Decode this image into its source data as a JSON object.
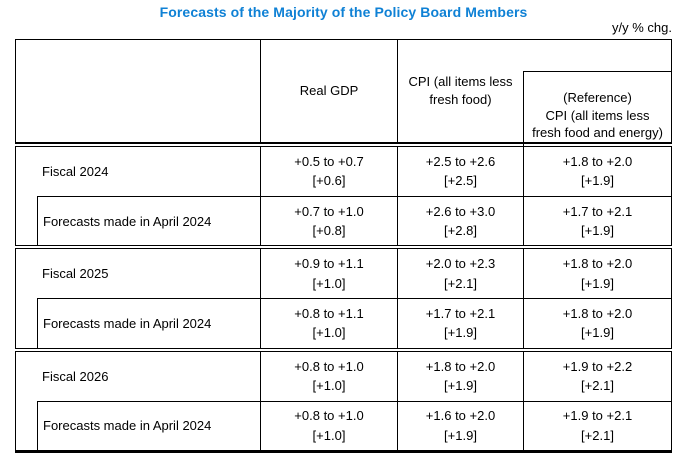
{
  "title": "Forecasts of the Majority of the Policy Board Members",
  "unit_note": "y/y % chg.",
  "accent_color": "#0f81d5",
  "table": {
    "headers": {
      "row_label": "",
      "real_gdp": "Real GDP",
      "cpi": "CPI (all items less\nfresh food)",
      "cpi_reference": "(Reference)\nCPI (all items less\nfresh food and energy)"
    },
    "groups": [
      {
        "rows": [
          {
            "label": "Fiscal 2024",
            "values": [
              "+0.5 to +0.7\n[+0.6]",
              "+2.5 to +2.6\n[+2.5]",
              "+1.8 to +2.0\n[+1.9]"
            ]
          },
          {
            "label": "Forecasts made in April 2024",
            "values": [
              "+0.7 to +1.0\n[+0.8]",
              "+2.6 to +3.0\n[+2.8]",
              "+1.7 to +2.1\n[+1.9]"
            ]
          }
        ]
      },
      {
        "rows": [
          {
            "label": "Fiscal 2025",
            "values": [
              "+0.9 to +1.1\n[+1.0]",
              "+2.0 to +2.3\n[+2.1]",
              "+1.8 to +2.0\n[+1.9]"
            ]
          },
          {
            "label": "Forecasts made in April 2024",
            "values": [
              "+0.8 to +1.1\n[+1.0]",
              "+1.7 to +2.1\n[+1.9]",
              "+1.8 to +2.0\n[+1.9]"
            ]
          }
        ]
      },
      {
        "rows": [
          {
            "label": "Fiscal 2026",
            "values": [
              "+0.8 to +1.0\n[+1.0]",
              "+1.8 to +2.0\n[+1.9]",
              "+1.9 to +2.2\n[+2.1]"
            ]
          },
          {
            "label": "Forecasts made in April 2024",
            "values": [
              "+0.8 to +1.0\n[+1.0]",
              "+1.6 to +2.0\n[+1.9]",
              "+1.9 to +2.1\n[+2.1]"
            ]
          }
        ]
      }
    ]
  }
}
